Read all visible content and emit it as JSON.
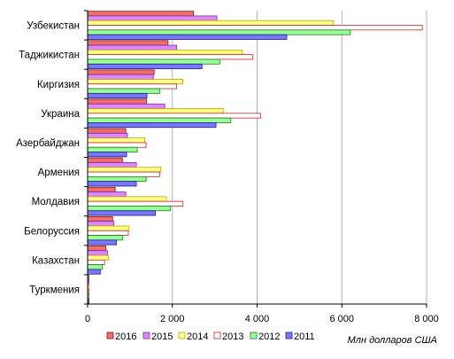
{
  "chart_data": {
    "type": "bar",
    "orientation": "horizontal",
    "categories": [
      "Узбекистан",
      "Таджикистан",
      "Киргизия",
      "Украина",
      "Азербайджан",
      "Армения",
      "Молдавия",
      "Белоруссия",
      "Казахстан",
      "Туркмения"
    ],
    "series": [
      {
        "name": "2016",
        "color": "#f26c6c",
        "fill": "#f26c6c",
        "stroke": "#7a1f1f",
        "values": [
          2500,
          1900,
          1570,
          1390,
          900,
          820,
          650,
          590,
          430,
          30
        ]
      },
      {
        "name": "2015",
        "color": "#cc66ff",
        "fill": "#dd88ff",
        "stroke": "#7a2aa8",
        "values": [
          3050,
          2100,
          1550,
          1820,
          940,
          1150,
          900,
          620,
          470,
          30
        ]
      },
      {
        "name": "2014",
        "color": "#ffff66",
        "fill": "#ffff88",
        "stroke": "#c8a000",
        "values": [
          5800,
          3650,
          2250,
          3200,
          1350,
          1730,
          1860,
          980,
          490,
          30
        ]
      },
      {
        "name": "2013",
        "color": "#ffffff",
        "fill": "#ffffff",
        "stroke": "#cc2222",
        "values": [
          7900,
          3900,
          2100,
          4080,
          1380,
          1700,
          2250,
          960,
          400,
          30
        ]
      },
      {
        "name": "2012",
        "color": "#66ff66",
        "fill": "#99ff99",
        "stroke": "#1f7a1f",
        "values": [
          6200,
          3120,
          1700,
          3380,
          1170,
          1380,
          1950,
          830,
          350,
          30
        ]
      },
      {
        "name": "2011",
        "color": "#6666ff",
        "fill": "#7777ff",
        "stroke": "#1f1f7a",
        "values": [
          4700,
          2700,
          1400,
          3030,
          920,
          1150,
          1600,
          680,
          300,
          30
        ]
      }
    ],
    "xlim": [
      0,
      8000
    ],
    "xticks": [
      0,
      2000,
      4000,
      6000,
      8000
    ],
    "xtick_labels": [
      "0",
      "2 000",
      "4 000",
      "6 000",
      "8 000"
    ],
    "xlabel": "Млн долларов США",
    "grid": "vertical",
    "legend": "bottom"
  }
}
